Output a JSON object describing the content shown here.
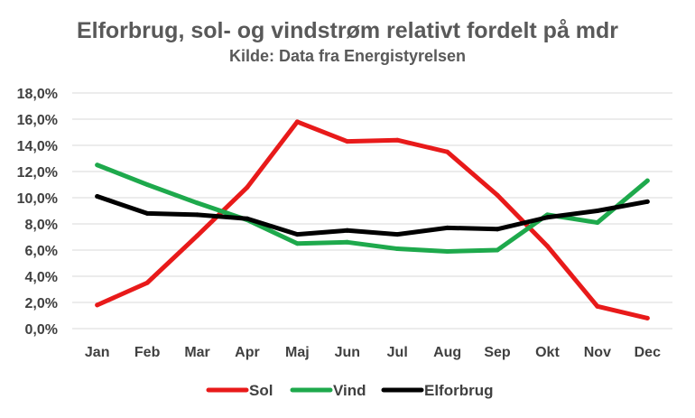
{
  "chart_data": {
    "type": "line",
    "title": "Elforbrug, sol- og vindstrøm relativt fordelt på mdr",
    "subtitle": "Kilde: Data fra Energistyrelsen",
    "categories": [
      "Jan",
      "Feb",
      "Mar",
      "Apr",
      "Maj",
      "Jun",
      "Jul",
      "Aug",
      "Sep",
      "Okt",
      "Nov",
      "Dec"
    ],
    "ylim": [
      0,
      18
    ],
    "yticks": [
      {
        "value": 0,
        "label": "0,0%"
      },
      {
        "value": 2,
        "label": "2,0%"
      },
      {
        "value": 4,
        "label": "4,0%"
      },
      {
        "value": 6,
        "label": "6,0%"
      },
      {
        "value": 8,
        "label": "8,0%"
      },
      {
        "value": 10,
        "label": "10,0%"
      },
      {
        "value": 12,
        "label": "12,0%"
      },
      {
        "value": 14,
        "label": "14,0%"
      },
      {
        "value": 16,
        "label": "16,0%"
      },
      {
        "value": 18,
        "label": "18,0%"
      }
    ],
    "grid": true,
    "legend_position": "bottom",
    "series": [
      {
        "name": "Sol",
        "color": "#e81a1a",
        "values": [
          1.8,
          3.5,
          7.1,
          10.8,
          15.8,
          14.3,
          14.4,
          13.5,
          10.2,
          6.3,
          1.7,
          0.8
        ]
      },
      {
        "name": "Vind",
        "color": "#1ea94c",
        "values": [
          12.5,
          11.0,
          9.6,
          8.3,
          6.5,
          6.6,
          6.1,
          5.9,
          6.0,
          8.7,
          8.1,
          11.3
        ]
      },
      {
        "name": "Elforbrug",
        "color": "#000000",
        "values": [
          10.1,
          8.8,
          8.7,
          8.4,
          7.2,
          7.5,
          7.2,
          7.7,
          7.6,
          8.5,
          9.0,
          9.7
        ]
      }
    ]
  }
}
